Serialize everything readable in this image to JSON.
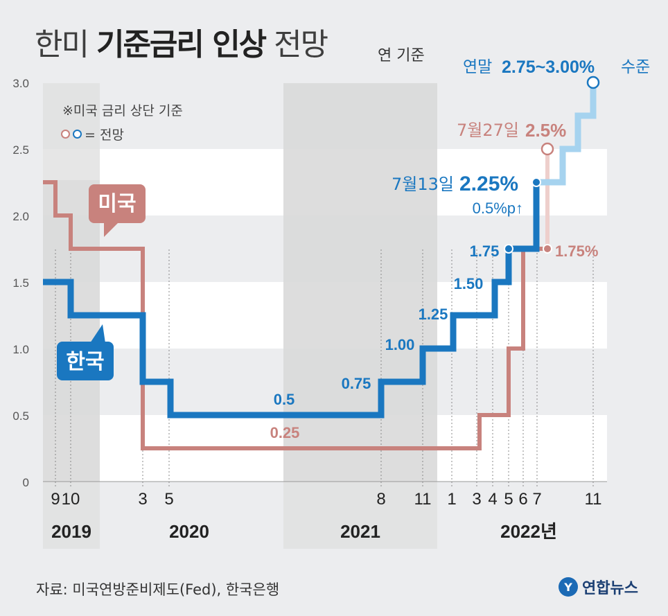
{
  "title": {
    "light": "한미",
    "bold": "기준금리 인상",
    "tail": "전망"
  },
  "unit": "연 기준",
  "note": "※미국 금리 상단 기준",
  "legend_text": "= 전망",
  "source": "자료: 미국연방준비제도(Fed), 한국은행",
  "brand": "연합뉴스",
  "colors": {
    "us": "#c8827d",
    "us_projection": "#eecfcc",
    "korea": "#1a77c0",
    "korea_projection": "#a6d3ef",
    "shade": "#e0e0e0",
    "band": "#ffffff"
  },
  "chart_data": {
    "type": "line",
    "title": "한미 기준금리 인상 전망",
    "ylabel": "연 기준",
    "ylim": [
      0,
      3.0
    ],
    "y_ticks": [
      "0",
      "0.5",
      "1.0",
      "1.5",
      "2.0",
      "2.5",
      "3.0"
    ],
    "x_ticks": [
      "9",
      "10",
      "3",
      "5",
      "8",
      "11",
      "1",
      "3",
      "4",
      "5",
      "6",
      "7",
      "11"
    ],
    "year_labels": [
      "2019",
      "2020",
      "2021",
      "2022년"
    ],
    "series": [
      {
        "name": "미국",
        "steps": [
          {
            "date": "2019-07",
            "value": 2.25
          },
          {
            "date": "2019-09",
            "value": 2.0
          },
          {
            "date": "2019-10",
            "value": 1.75
          },
          {
            "date": "2020-03",
            "value": 0.25
          },
          {
            "date": "2022-03",
            "value": 0.5
          },
          {
            "date": "2022-05",
            "value": 1.0
          },
          {
            "date": "2022-06",
            "value": 1.75
          },
          {
            "date": "2022-07-27",
            "value": 2.5,
            "projection": true
          }
        ]
      },
      {
        "name": "한국",
        "steps": [
          {
            "date": "2019-07",
            "value": 1.5
          },
          {
            "date": "2019-10",
            "value": 1.25
          },
          {
            "date": "2020-03",
            "value": 0.75
          },
          {
            "date": "2020-05",
            "value": 0.5
          },
          {
            "date": "2021-08",
            "value": 0.75
          },
          {
            "date": "2021-11",
            "value": 1.0
          },
          {
            "date": "2022-01",
            "value": 1.25
          },
          {
            "date": "2022-04",
            "value": 1.5
          },
          {
            "date": "2022-05",
            "value": 1.75
          },
          {
            "date": "2022-07-13",
            "value": 2.25
          },
          {
            "date": "2022-10",
            "value": 2.5,
            "projection": true
          },
          {
            "date": "2022-11",
            "value": 2.75,
            "projection": true
          },
          {
            "date": "2022-12",
            "value": 3.0,
            "projection": true
          }
        ]
      }
    ],
    "series_labels": {
      "us": "미국",
      "korea": "한국"
    },
    "value_labels": {
      "korea": [
        "0.5",
        "0.75",
        "1.00",
        "1.25",
        "1.50",
        "1.75"
      ],
      "us": [
        "0.25",
        "1.75%"
      ]
    },
    "annotations": {
      "korea_jul13_date": "7월13일",
      "korea_jul13_value": "2.25%",
      "korea_jul13_change": "0.5%p↑",
      "us_jul27_date": "7월27일",
      "us_jul27_value": "2.5%",
      "year_end_prefix": "연말",
      "year_end_value": "2.75~3.00%",
      "year_end_suffix": "수준"
    }
  }
}
